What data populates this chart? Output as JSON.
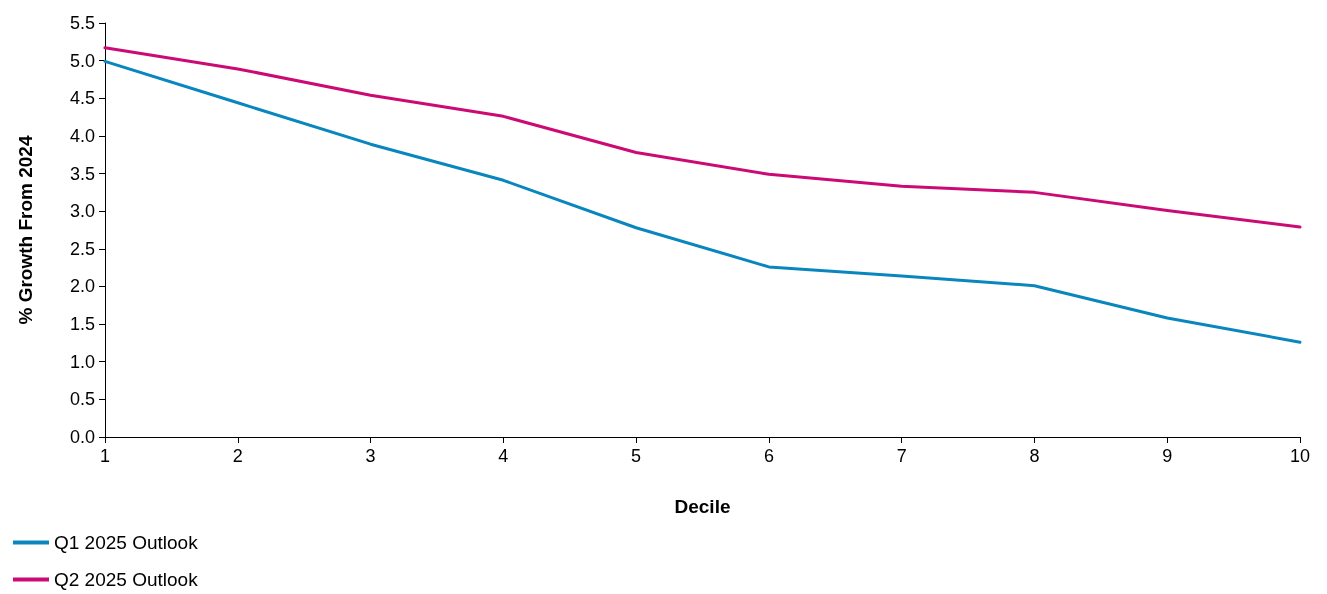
{
  "chart_data": {
    "type": "line",
    "xlabel": "Decile",
    "ylabel": "% Growth From 2024",
    "x": [
      1,
      2,
      3,
      4,
      5,
      6,
      7,
      8,
      9,
      10
    ],
    "series": [
      {
        "name": "Q1 2025 Outlook",
        "color": "#0a86bf",
        "values": [
          4.99,
          4.44,
          3.89,
          3.41,
          2.78,
          2.26,
          2.14,
          2.01,
          1.58,
          1.26
        ]
      },
      {
        "name": "Q2 2025 Outlook",
        "color": "#cc0a75",
        "values": [
          5.17,
          4.89,
          4.54,
          4.26,
          3.78,
          3.49,
          3.33,
          3.25,
          3.01,
          2.79
        ]
      }
    ],
    "xlim": [
      1,
      10
    ],
    "xticks": [
      1,
      2,
      3,
      4,
      5,
      6,
      7,
      8,
      9,
      10
    ],
    "ylim": [
      0,
      5.5
    ],
    "yticks": [
      {
        "value": 0,
        "label": "0.0"
      },
      {
        "value": 0.5,
        "label": "0.5"
      },
      {
        "value": 1,
        "label": "1.0"
      },
      {
        "value": 1.5,
        "label": "1.5"
      },
      {
        "value": 2,
        "label": "2.0"
      },
      {
        "value": 2.5,
        "label": "2.5"
      },
      {
        "value": 3,
        "label": "3.0"
      },
      {
        "value": 3.5,
        "label": "3.5"
      },
      {
        "value": 4,
        "label": "4.0"
      },
      {
        "value": 4.5,
        "label": "4.5"
      },
      {
        "value": 5,
        "label": "5.0"
      },
      {
        "value": 5.5,
        "label": "5.5"
      }
    ],
    "grid": false,
    "legend": "bottom left",
    "marker": "none",
    "line_style": "solid"
  }
}
